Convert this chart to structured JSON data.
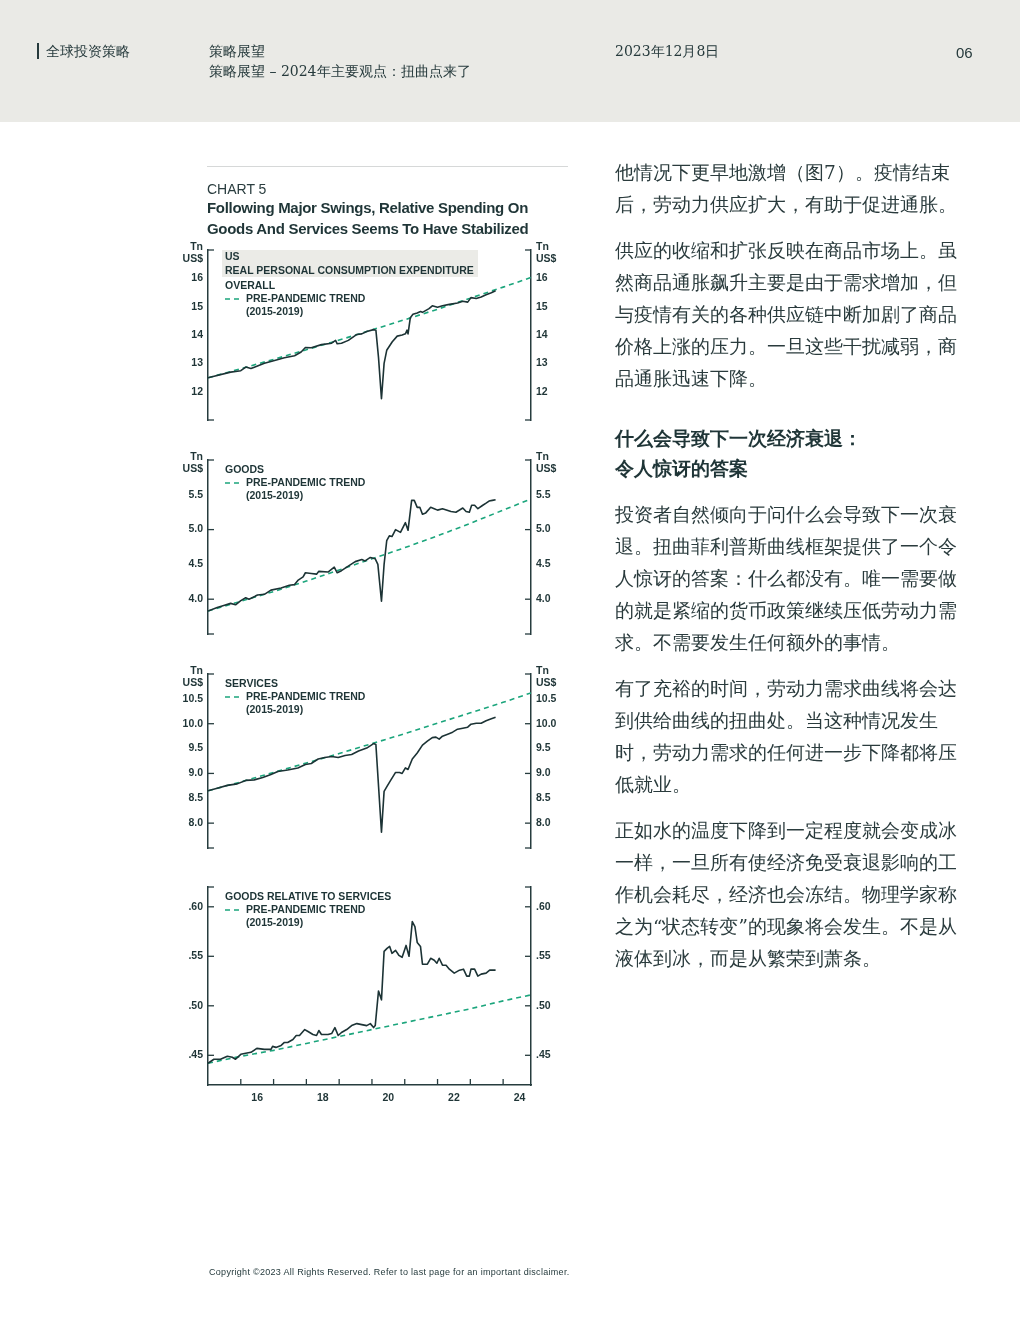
{
  "chart_data": [
    {
      "type": "other",
      "annotations": [
        "全球投资策略",
        "策略展望",
        "策略展望 – 2024年主要观点：扭曲点来了",
        "2023年12月8日",
        "06"
      ]
    },
    {
      "type": "line",
      "title": "Following Major Swings, Relative Spending On Goods And Services Seems To Have Stabilized",
      "subtitle": "CHART 5",
      "annotations": [
        "US",
        "REAL PERSONAL CONSUMPTION EXPENDITURE"
      ],
      "ylabel": "Tn US$",
      "y2label": "Tn US$",
      "xlim": [
        14.5,
        24.35
      ],
      "xticks": [
        16,
        18,
        20,
        22,
        24
      ],
      "ylim": [
        11,
        17
      ],
      "yticks": [
        {
          "value": 11,
          "label": null
        },
        12,
        13,
        14,
        15,
        16,
        {
          "value": 17,
          "label": null
        }
      ],
      "y2lim": [
        11,
        17
      ],
      "y2ticks": [
        {
          "value": 11,
          "label": null
        },
        12,
        13,
        14,
        15,
        16,
        {
          "value": 17,
          "label": null
        }
      ],
      "tick_labels": "y",
      "grid": false,
      "legend": "top left",
      "marker": "none",
      "series": [
        {
          "name": "OVERALL",
          "color": "#1c3335",
          "line_style": "solid",
          "x": [
            14.5,
            15.19,
            15.5,
            15.65,
            15.81,
            16.22,
            16.53,
            16.83,
            17.14,
            17.34,
            17.47,
            17.65,
            17.96,
            18.27,
            18.39,
            18.44,
            18.57,
            18.78,
            19.04,
            19.19,
            19.34,
            19.55,
            19.62,
            19.7,
            19.79,
            19.87,
            19.95,
            20.12,
            20.27,
            20.42,
            20.52,
            20.57,
            20.6,
            20.67,
            20.75,
            20.88,
            20.98,
            21.04,
            21.24,
            21.34,
            21.5,
            21.65,
            21.86,
            22.11,
            22.27,
            22.42,
            22.52,
            22.68,
            22.83,
            22.98,
            23.14,
            23.27
          ],
          "values": [
            12.49,
            12.69,
            12.74,
            12.87,
            12.82,
            13.0,
            13.1,
            13.2,
            13.27,
            13.4,
            13.56,
            13.55,
            13.66,
            13.71,
            13.81,
            13.69,
            13.71,
            13.81,
            14.02,
            14.04,
            14.12,
            14.19,
            14.17,
            13.2,
            11.75,
            13.0,
            13.46,
            13.76,
            13.96,
            14.0,
            14.04,
            14.17,
            14.04,
            14.61,
            14.73,
            14.78,
            14.83,
            14.8,
            14.93,
            15.03,
            14.98,
            15.03,
            15.08,
            15.13,
            15.19,
            15.16,
            15.32,
            15.29,
            15.34,
            15.42,
            15.49,
            15.56
          ]
        },
        {
          "name": "PRE-PANDEMIC TREND (2015-2019)",
          "color": "#1ba57c",
          "line_style": "dashed",
          "x": [
            14.5,
            15.5,
            16.5,
            17.5,
            18.5,
            19.5,
            20.5,
            21.5,
            22.5,
            23.5,
            24.35
          ],
          "values": [
            12.49,
            12.81,
            13.14,
            13.48,
            13.82,
            14.18,
            14.54,
            14.91,
            15.3,
            15.69,
            16.03
          ]
        }
      ]
    },
    {
      "type": "line",
      "ylabel": "Tn US$",
      "y2label": "Tn US$",
      "xlim": [
        14.5,
        24.35
      ],
      "xticks": [
        16,
        18,
        20,
        22,
        24
      ],
      "ylim": [
        3.5,
        6
      ],
      "yticks": [
        {
          "value": 3.5,
          "label": null
        },
        {
          "value": 4,
          "label": "4.0"
        },
        4.5,
        {
          "value": 5,
          "label": "5.0"
        },
        5.5,
        {
          "value": 6,
          "label": null
        }
      ],
      "y2lim": [
        3.5,
        6
      ],
      "y2ticks": [
        {
          "value": 3.5,
          "label": null
        },
        {
          "value": 4,
          "label": "4.0"
        },
        4.5,
        {
          "value": 5,
          "label": "5.0"
        },
        5.5,
        {
          "value": 6,
          "label": null
        }
      ],
      "tick_labels": "y",
      "grid": false,
      "legend": "top left",
      "marker": "none",
      "series": [
        {
          "name": "GOODS",
          "color": "#1c3335",
          "line_style": "solid",
          "x": [
            14.5,
            14.78,
            14.98,
            15.19,
            15.34,
            15.5,
            15.65,
            15.75,
            16.01,
            16.22,
            16.42,
            16.73,
            16.98,
            17.14,
            17.24,
            17.4,
            17.47,
            17.65,
            17.81,
            17.88,
            18.16,
            18.35,
            18.44,
            18.57,
            18.73,
            18.99,
            19.19,
            19.29,
            19.45,
            19.6,
            19.68,
            19.79,
            19.87,
            19.95,
            20.03,
            20.11,
            20.22,
            20.37,
            20.52,
            20.6,
            20.71,
            20.79,
            20.88,
            20.96,
            21.04,
            21.14,
            21.29,
            21.4,
            21.5,
            21.65,
            21.91,
            22.06,
            22.27,
            22.37,
            22.47,
            22.54,
            22.63,
            22.73,
            22.88,
            22.98,
            23.07,
            23.17,
            23.27
          ],
          "values": [
            3.83,
            3.88,
            3.91,
            3.94,
            3.92,
            3.98,
            4.02,
            4.0,
            4.06,
            4.07,
            4.13,
            4.16,
            4.2,
            4.21,
            4.27,
            4.32,
            4.38,
            4.37,
            4.36,
            4.4,
            4.39,
            4.46,
            4.38,
            4.41,
            4.46,
            4.54,
            4.57,
            4.55,
            4.6,
            4.58,
            4.5,
            3.97,
            4.5,
            4.84,
            4.91,
            4.9,
            5.0,
            4.96,
            5.1,
            4.99,
            5.42,
            5.42,
            5.32,
            5.32,
            5.22,
            5.24,
            5.32,
            5.3,
            5.28,
            5.3,
            5.26,
            5.25,
            5.31,
            5.26,
            5.25,
            5.35,
            5.35,
            5.3,
            5.35,
            5.38,
            5.41,
            5.42,
            5.43
          ]
        },
        {
          "name": "PRE-PANDEMIC TREND (2015-2019)",
          "color": "#1ba57c",
          "line_style": "dashed",
          "x": [
            14.5,
            15.5,
            16.5,
            17.5,
            18.5,
            19.5,
            20.5,
            21.5,
            22.5,
            23.5,
            24.35
          ],
          "values": [
            3.83,
            3.97,
            4.11,
            4.26,
            4.42,
            4.58,
            4.74,
            4.91,
            5.09,
            5.28,
            5.44
          ]
        }
      ]
    },
    {
      "type": "line",
      "ylabel": "Tn US$",
      "y2label": "Tn US$",
      "xlim": [
        14.5,
        24.35
      ],
      "xticks": [
        16,
        18,
        20,
        22,
        24
      ],
      "ylim": [
        7.5,
        11
      ],
      "yticks": [
        {
          "value": 7.5,
          "label": null
        },
        {
          "value": 8,
          "label": "8.0"
        },
        8.5,
        {
          "value": 9,
          "label": "9.0"
        },
        9.5,
        {
          "value": 10,
          "label": "10.0"
        },
        10.5,
        {
          "value": 11,
          "label": null
        }
      ],
      "y2lim": [
        7.5,
        11
      ],
      "y2ticks": [
        {
          "value": 7.5,
          "label": null
        },
        {
          "value": 8,
          "label": "8.0"
        },
        8.5,
        {
          "value": 9,
          "label": "9.0"
        },
        9.5,
        {
          "value": 10,
          "label": "10.0"
        },
        10.5,
        {
          "value": 11,
          "label": null
        }
      ],
      "tick_labels": "y",
      "grid": false,
      "legend": "top left",
      "marker": "none",
      "series": [
        {
          "name": "SERVICES",
          "color": "#1c3335",
          "line_style": "solid",
          "x": [
            14.5,
            14.78,
            15.09,
            15.39,
            15.65,
            15.91,
            16.17,
            16.42,
            16.63,
            16.93,
            17.24,
            17.47,
            17.65,
            17.86,
            18.06,
            18.27,
            18.47,
            18.68,
            18.88,
            19.09,
            19.34,
            19.55,
            19.62,
            19.79,
            19.87,
            19.95,
            20.06,
            20.22,
            20.34,
            20.42,
            20.52,
            20.6,
            20.73,
            20.88,
            21.04,
            21.19,
            21.34,
            21.45,
            21.55,
            21.65,
            21.81,
            21.96,
            22.11,
            22.27,
            22.42,
            22.52,
            22.68,
            22.83,
            22.98,
            23.14,
            23.27
          ],
          "values": [
            8.65,
            8.7,
            8.76,
            8.79,
            8.86,
            8.87,
            8.92,
            8.98,
            9.04,
            9.07,
            9.11,
            9.18,
            9.2,
            9.29,
            9.32,
            9.34,
            9.32,
            9.36,
            9.38,
            9.45,
            9.51,
            9.6,
            9.58,
            7.82,
            8.64,
            8.73,
            8.85,
            9.02,
            9.02,
            9.0,
            9.11,
            9.08,
            9.29,
            9.41,
            9.57,
            9.65,
            9.72,
            9.73,
            9.69,
            9.75,
            9.79,
            9.83,
            9.89,
            9.91,
            9.93,
            9.99,
            10.01,
            10.01,
            10.06,
            10.1,
            10.13
          ]
        },
        {
          "name": "PRE-PANDEMIC TREND (2015-2019)",
          "color": "#1ba57c",
          "line_style": "dashed",
          "x": [
            14.5,
            15.5,
            16.5,
            17.5,
            18.5,
            19.5,
            20.5,
            21.5,
            22.5,
            23.5,
            24.35
          ],
          "values": [
            8.65,
            8.83,
            9.02,
            9.21,
            9.4,
            9.6,
            9.8,
            10.01,
            10.22,
            10.43,
            10.62
          ]
        }
      ]
    },
    {
      "type": "line",
      "xlim": [
        14.5,
        24.35
      ],
      "xticks": [
        {
          "value": 15.5,
          "label": null
        },
        16,
        {
          "value": 16.5,
          "label": null
        },
        {
          "value": 17.5,
          "label": null
        },
        18,
        {
          "value": 18.5,
          "label": null
        },
        {
          "value": 19.5,
          "label": null
        },
        20,
        {
          "value": 20.5,
          "label": null
        },
        {
          "value": 21.5,
          "label": null
        },
        22,
        {
          "value": 22.5,
          "label": null
        },
        {
          "value": 23.5,
          "label": null
        },
        24
      ],
      "ylim": [
        0.42,
        0.62
      ],
      "yticks": [
        {
          "value": 0.45,
          "label": ".45"
        },
        {
          "value": 0.5,
          "label": ".50"
        },
        {
          "value": 0.55,
          "label": ".55"
        },
        {
          "value": 0.6,
          "label": ".60"
        },
        {
          "value": 0.62,
          "label": null
        }
      ],
      "y2lim": [
        0.42,
        0.62
      ],
      "y2ticks": [
        {
          "value": 0.45,
          "label": ".45"
        },
        {
          "value": 0.5,
          "label": ".50"
        },
        {
          "value": 0.55,
          "label": ".55"
        },
        {
          "value": 0.6,
          "label": ".60"
        },
        {
          "value": 0.62,
          "label": null
        }
      ],
      "grid": false,
      "legend": "top left",
      "marker": "none",
      "series": [
        {
          "name": "GOODS RELATIVE TO SERVICES",
          "color": "#1c3335",
          "line_style": "solid",
          "x": [
            14.5,
            14.68,
            14.88,
            15.09,
            15.24,
            15.34,
            15.5,
            15.65,
            15.81,
            15.99,
            16.22,
            16.42,
            16.47,
            16.57,
            16.73,
            16.83,
            16.93,
            17.09,
            17.19,
            17.29,
            17.45,
            17.55,
            17.7,
            17.81,
            17.88,
            17.96,
            18.16,
            18.27,
            18.37,
            18.47,
            18.57,
            18.73,
            18.88,
            19.04,
            19.19,
            19.34,
            19.45,
            19.55,
            19.6,
            19.7,
            19.79,
            19.87,
            19.96,
            20.04,
            20.11,
            20.22,
            20.32,
            20.42,
            20.54,
            20.63,
            20.73,
            20.81,
            20.88,
            20.98,
            21.04,
            21.19,
            21.29,
            21.4,
            21.48,
            21.55,
            21.65,
            21.76,
            21.86,
            22.01,
            22.17,
            22.29,
            22.39,
            22.47,
            22.52,
            22.63,
            22.73,
            22.83,
            22.98,
            23.09,
            23.17,
            23.27
          ],
          "values": [
            0.442,
            0.446,
            0.446,
            0.449,
            0.448,
            0.446,
            0.451,
            0.452,
            0.453,
            0.457,
            0.456,
            0.456,
            0.459,
            0.458,
            0.46,
            0.463,
            0.463,
            0.466,
            0.47,
            0.47,
            0.476,
            0.474,
            0.471,
            0.47,
            0.475,
            0.471,
            0.471,
            0.472,
            0.478,
            0.47,
            0.473,
            0.476,
            0.48,
            0.482,
            0.481,
            0.48,
            0.482,
            0.478,
            0.48,
            0.515,
            0.506,
            0.555,
            0.558,
            0.56,
            0.553,
            0.556,
            0.551,
            0.549,
            0.561,
            0.55,
            0.585,
            0.58,
            0.564,
            0.56,
            0.542,
            0.542,
            0.548,
            0.546,
            0.543,
            0.548,
            0.541,
            0.541,
            0.537,
            0.533,
            0.536,
            0.537,
            0.53,
            0.53,
            0.537,
            0.537,
            0.53,
            0.532,
            0.533,
            0.536,
            0.536,
            0.536
          ]
        },
        {
          "name": "PRE-PANDEMIC TREND (2015-2019)",
          "color": "#1ba57c",
          "line_style": "dashed",
          "x": [
            14.5,
            15.5,
            16.5,
            17.5,
            18.5,
            19.5,
            20.5,
            21.5,
            22.5,
            23.5,
            24.35
          ],
          "values": [
            0.442,
            0.449,
            0.455,
            0.462,
            0.469,
            0.476,
            0.483,
            0.49,
            0.497,
            0.505,
            0.511
          ]
        }
      ]
    },
    {
      "type": "other",
      "annotations": [
        "他情况下更早地激增（图7）。疫情结束后，劳动力供应扩大，有助于促进通胀。",
        "供应的收缩和扩张反映在商品市场上。虽然商品通胀飙升主要是由于需求增加，但与疫情有关的各种供应链中断加剧了商品价格上涨的压力。一旦这些干扰减弱，商品通胀迅速下降。"
      ]
    },
    {
      "type": "other",
      "title": "什么会导致下一次经济衰退：令人惊讶的答案",
      "annotations": [
        "投资者自然倾向于问什么会导致下一次衰退。扭曲菲利普斯曲线框架提供了一个令人惊讶的答案：什么都没有。唯一需要做的就是紧缩的货币政策继续压低劳动力需求。不需要发生任何额外的事情。",
        "有了充裕的时间，劳动力需求曲线将会达到供给曲线的扭曲处。当这种情况发生时，劳动力需求的任何进一步下降都将压低就业。",
        "正如水的温度下降到一定程度就会变成冰一样，一旦所有使经济免受衰退影响的工作机会耗尽，经济也会冻结。物理学家称之为“状态转变”的现象将会发生。不是从液体到冰，而是从繁荣到萧条。"
      ]
    },
    {
      "type": "other",
      "annotations": [
        "Copyright ©2023 All Rights Reserved. Refer to last page for an important disclaimer."
      ]
    }
  ]
}
